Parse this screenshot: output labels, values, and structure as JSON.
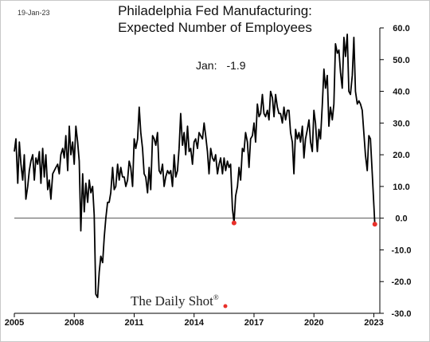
{
  "header": {
    "date": "19-Jan-23",
    "title_line1": "Philadelphia Fed Manufacturing:",
    "title_line2": "Expected Number of Employees"
  },
  "annotation": {
    "label": "Jan:",
    "value": "-1.9"
  },
  "watermark": {
    "text": "The Daily Shot",
    "mark": "®"
  },
  "colors": {
    "line": "#000000",
    "zero_line": "#555555",
    "endpoint": "#e8302a"
  },
  "chart_data": {
    "type": "line",
    "title": "Philadelphia Fed Manufacturing: Expected Number of Employees",
    "xlabel": "",
    "ylabel": "",
    "x_ticks": [
      "2005",
      "2008",
      "2011",
      "2014",
      "2017",
      "2020",
      "2023"
    ],
    "y_ticks": [
      "60.0",
      "50.0",
      "40.0",
      "30.0",
      "20.0",
      "10.0",
      "0.0",
      "-10.0",
      "-20.0",
      "-30.0"
    ],
    "ylim": [
      -30,
      60
    ],
    "xlim": [
      2005.0,
      2023.3
    ],
    "zero_line": 0,
    "highlight_points": [
      {
        "x": 2016.0,
        "y": -1.5
      },
      {
        "x": 2023.05,
        "y": -1.9
      }
    ],
    "series": [
      {
        "x": [
          2005.0,
          2005.08,
          2005.17,
          2005.25,
          2005.33,
          2005.42,
          2005.5,
          2005.58,
          2005.67,
          2005.75,
          2005.83,
          2005.92,
          2006.0,
          2006.08,
          2006.17,
          2006.25,
          2006.33,
          2006.42,
          2006.5,
          2006.58,
          2006.67,
          2006.75,
          2006.83,
          2006.92,
          2007.0,
          2007.08,
          2007.17,
          2007.25,
          2007.33,
          2007.42,
          2007.5,
          2007.58,
          2007.67,
          2007.75,
          2007.83,
          2007.92,
          2008.0,
          2008.08,
          2008.17,
          2008.25,
          2008.33,
          2008.42,
          2008.5,
          2008.58,
          2008.67,
          2008.75,
          2008.83,
          2008.92,
          2009.0,
          2009.08,
          2009.17,
          2009.25,
          2009.33,
          2009.42,
          2009.5,
          2009.58,
          2009.67,
          2009.75,
          2009.83,
          2009.92,
          2010.0,
          2010.08,
          2010.17,
          2010.25,
          2010.33,
          2010.42,
          2010.5,
          2010.58,
          2010.67,
          2010.75,
          2010.83,
          2010.92,
          2011.0,
          2011.08,
          2011.17,
          2011.25,
          2011.33,
          2011.42,
          2011.5,
          2011.58,
          2011.67,
          2011.75,
          2011.83,
          2011.92,
          2012.0,
          2012.08,
          2012.17,
          2012.25,
          2012.33,
          2012.42,
          2012.5,
          2012.58,
          2012.67,
          2012.75,
          2012.83,
          2012.92,
          2013.0,
          2013.08,
          2013.17,
          2013.25,
          2013.33,
          2013.42,
          2013.5,
          2013.58,
          2013.67,
          2013.75,
          2013.83,
          2013.92,
          2014.0,
          2014.08,
          2014.17,
          2014.25,
          2014.33,
          2014.42,
          2014.5,
          2014.58,
          2014.67,
          2014.75,
          2014.83,
          2014.92,
          2015.0,
          2015.08,
          2015.17,
          2015.25,
          2015.33,
          2015.42,
          2015.5,
          2015.58,
          2015.67,
          2015.75,
          2015.83,
          2015.92,
          2016.0,
          2016.08,
          2016.17,
          2016.25,
          2016.33,
          2016.42,
          2016.5,
          2016.58,
          2016.67,
          2016.75,
          2016.83,
          2016.92,
          2017.0,
          2017.08,
          2017.17,
          2017.25,
          2017.33,
          2017.42,
          2017.5,
          2017.58,
          2017.67,
          2017.75,
          2017.83,
          2017.92,
          2018.0,
          2018.08,
          2018.17,
          2018.25,
          2018.33,
          2018.42,
          2018.5,
          2018.58,
          2018.67,
          2018.75,
          2018.83,
          2018.92,
          2019.0,
          2019.08,
          2019.17,
          2019.25,
          2019.33,
          2019.42,
          2019.5,
          2019.58,
          2019.67,
          2019.75,
          2019.83,
          2019.92,
          2020.0,
          2020.08,
          2020.17,
          2020.25,
          2020.33,
          2020.42,
          2020.5,
          2020.58,
          2020.67,
          2020.75,
          2020.83,
          2020.92,
          2021.0,
          2021.08,
          2021.17,
          2021.25,
          2021.33,
          2021.42,
          2021.5,
          2021.58,
          2021.67,
          2021.75,
          2021.83,
          2021.92,
          2022.0,
          2022.08,
          2022.17,
          2022.25,
          2022.33,
          2022.42,
          2022.5,
          2022.58,
          2022.67,
          2022.75,
          2022.83,
          2022.92,
          2023.05
        ],
        "values": [
          21,
          25,
          11,
          24,
          17,
          12,
          20,
          6,
          10,
          15,
          18,
          20,
          12,
          19,
          17,
          21,
          11,
          22,
          13,
          20,
          9,
          12,
          6,
          14,
          15,
          16,
          17,
          14,
          20,
          22,
          19,
          26,
          15,
          29,
          20,
          24,
          17,
          29,
          24,
          18,
          -4,
          14,
          2,
          11,
          5,
          12,
          8,
          10,
          1,
          -24,
          -25,
          -17,
          -12,
          -14,
          -6,
          0,
          5,
          5,
          8,
          16,
          9,
          10,
          17,
          12,
          16,
          13,
          13,
          10,
          12,
          18,
          16,
          10,
          25,
          22,
          25,
          35,
          27,
          22,
          14,
          13,
          8,
          16,
          9,
          26,
          25,
          23,
          27,
          15,
          14,
          17,
          10,
          13,
          15,
          14,
          15,
          10,
          20,
          13,
          15,
          22,
          33,
          23,
          27,
          20,
          29,
          21,
          22,
          17,
          24,
          25,
          22,
          27,
          26,
          25,
          30,
          26,
          21,
          14,
          22,
          19,
          18,
          20,
          14,
          17,
          19,
          14,
          19,
          15,
          18,
          16,
          17,
          3,
          -1.5,
          7,
          10,
          16,
          12,
          22,
          21,
          27,
          24,
          16,
          25,
          26,
          30,
          24,
          36,
          32,
          33,
          39,
          33,
          32,
          34,
          31,
          40,
          38,
          32,
          39,
          35,
          33,
          33,
          30,
          35,
          31,
          34,
          34,
          27,
          24,
          14,
          28,
          25,
          27,
          24,
          29,
          19,
          25,
          28,
          31,
          24,
          21,
          34,
          30,
          21,
          28,
          25,
          36,
          47,
          41,
          45,
          29,
          35,
          31,
          36,
          55,
          52,
          53,
          46,
          41,
          57,
          51,
          58,
          40,
          39,
          45,
          57,
          40,
          36,
          37,
          36,
          34,
          27,
          20,
          15,
          26,
          25,
          14,
          -1.9
        ]
      }
    ]
  }
}
